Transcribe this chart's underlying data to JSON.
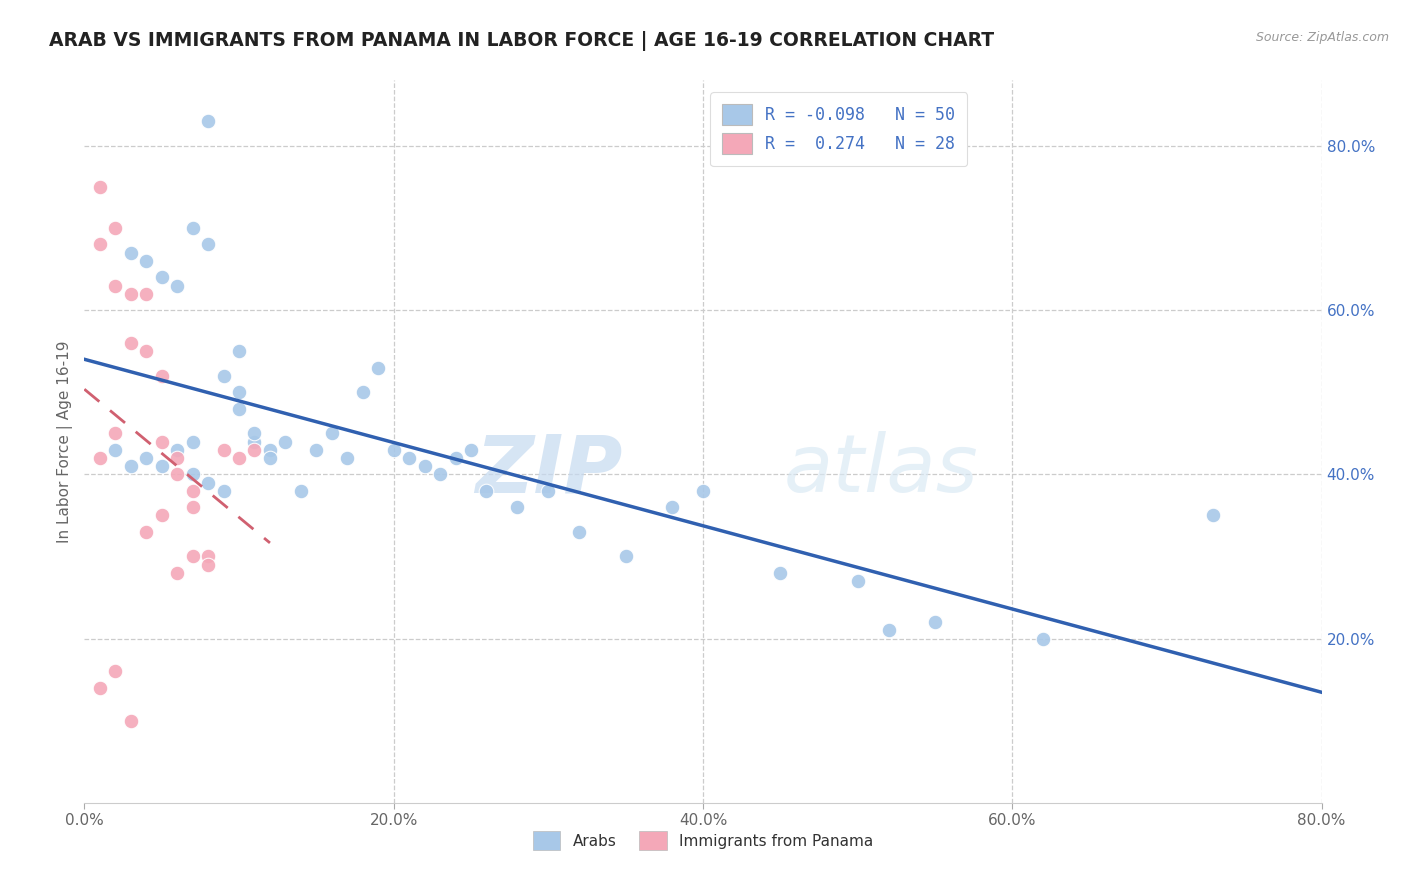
{
  "title": "ARAB VS IMMIGRANTS FROM PANAMA IN LABOR FORCE | AGE 16-19 CORRELATION CHART",
  "source_text": "Source: ZipAtlas.com",
  "ylabel": "In Labor Force | Age 16-19",
  "right_ytick_labels": [
    "80.0%",
    "60.0%",
    "40.0%",
    "20.0%"
  ],
  "right_ytick_values": [
    0.8,
    0.6,
    0.4,
    0.2
  ],
  "xlim": [
    0.0,
    0.8
  ],
  "ylim": [
    0.0,
    0.88
  ],
  "blue_color": "#a8c8e8",
  "pink_color": "#f4a8b8",
  "trend_blue": "#3060b0",
  "trend_pink": "#d06070",
  "watermark_zip": "ZIP",
  "watermark_atlas": "atlas",
  "arab_x": [
    0.08,
    0.02,
    0.03,
    0.04,
    0.05,
    0.06,
    0.07,
    0.07,
    0.08,
    0.09,
    0.1,
    0.1,
    0.11,
    0.12,
    0.03,
    0.04,
    0.05,
    0.06,
    0.07,
    0.08,
    0.09,
    0.1,
    0.11,
    0.12,
    0.13,
    0.14,
    0.15,
    0.16,
    0.17,
    0.18,
    0.19,
    0.2,
    0.21,
    0.22,
    0.23,
    0.24,
    0.25,
    0.26,
    0.28,
    0.3,
    0.32,
    0.35,
    0.38,
    0.4,
    0.45,
    0.5,
    0.52,
    0.55,
    0.62,
    0.73
  ],
  "arab_y": [
    0.83,
    0.43,
    0.41,
    0.42,
    0.41,
    0.43,
    0.4,
    0.44,
    0.39,
    0.38,
    0.55,
    0.5,
    0.44,
    0.43,
    0.67,
    0.66,
    0.64,
    0.63,
    0.7,
    0.68,
    0.52,
    0.48,
    0.45,
    0.42,
    0.44,
    0.38,
    0.43,
    0.45,
    0.42,
    0.5,
    0.53,
    0.43,
    0.42,
    0.41,
    0.4,
    0.42,
    0.43,
    0.38,
    0.36,
    0.38,
    0.33,
    0.3,
    0.36,
    0.38,
    0.28,
    0.27,
    0.21,
    0.22,
    0.2,
    0.35
  ],
  "panama_x": [
    0.01,
    0.01,
    0.01,
    0.01,
    0.02,
    0.02,
    0.02,
    0.02,
    0.03,
    0.03,
    0.03,
    0.04,
    0.04,
    0.04,
    0.05,
    0.05,
    0.05,
    0.06,
    0.06,
    0.06,
    0.07,
    0.07,
    0.07,
    0.08,
    0.08,
    0.09,
    0.1,
    0.11
  ],
  "panama_y": [
    0.75,
    0.68,
    0.42,
    0.14,
    0.7,
    0.63,
    0.45,
    0.16,
    0.62,
    0.56,
    0.1,
    0.62,
    0.55,
    0.33,
    0.52,
    0.44,
    0.35,
    0.42,
    0.4,
    0.28,
    0.38,
    0.36,
    0.3,
    0.3,
    0.29,
    0.43,
    0.42,
    0.43
  ]
}
